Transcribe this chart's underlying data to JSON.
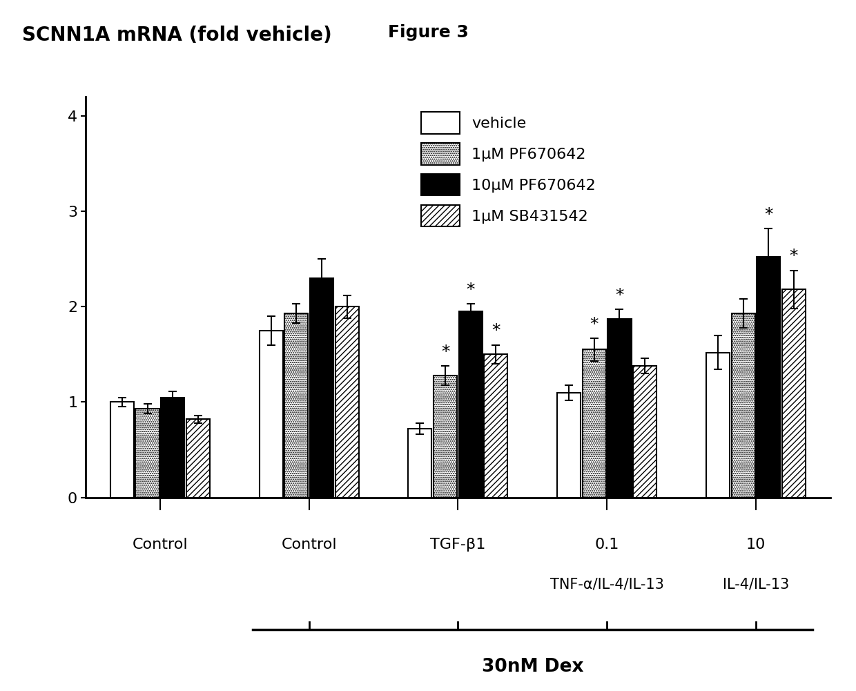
{
  "title": "Figure 3",
  "ylabel": "SCNN1A mRNA (fold vehicle)",
  "ylim": [
    0,
    4.2
  ],
  "yticks": [
    0,
    1,
    2,
    3,
    4
  ],
  "group_labels_line1": [
    "Control",
    "Control",
    "TGF-β1",
    "0.1",
    "10"
  ],
  "group_labels_line2": [
    "",
    "",
    "",
    "TNF-α/IL-4/IL-13",
    "IL-4/IL-13"
  ],
  "bar_values": [
    [
      1.0,
      0.93,
      1.05,
      0.82
    ],
    [
      1.75,
      1.93,
      2.3,
      2.0
    ],
    [
      0.72,
      1.28,
      1.95,
      1.5
    ],
    [
      1.1,
      1.55,
      1.87,
      1.38
    ],
    [
      1.52,
      1.93,
      2.52,
      2.18
    ]
  ],
  "bar_errors": [
    [
      0.05,
      0.05,
      0.06,
      0.04
    ],
    [
      0.15,
      0.1,
      0.2,
      0.12
    ],
    [
      0.06,
      0.1,
      0.08,
      0.1
    ],
    [
      0.08,
      0.12,
      0.1,
      0.08
    ],
    [
      0.18,
      0.15,
      0.3,
      0.2
    ]
  ],
  "star_flags": [
    [
      false,
      false,
      false,
      false
    ],
    [
      false,
      false,
      false,
      false
    ],
    [
      false,
      true,
      true,
      true
    ],
    [
      false,
      true,
      true,
      false
    ],
    [
      false,
      false,
      true,
      true
    ]
  ],
  "legend_labels": [
    "vehicle",
    "1μM PF670642",
    "10μM PF670642",
    "1μM SB431542"
  ],
  "bar_width": 0.17,
  "group_centers": [
    0,
    1.0,
    2.0,
    3.0,
    4.0
  ],
  "dex_label": "30nM Dex",
  "background_color": "white",
  "title_fontsize": 18,
  "ylabel_fontsize": 20,
  "tick_fontsize": 16,
  "legend_fontsize": 16,
  "star_fontsize": 18,
  "label_fontsize": 16
}
